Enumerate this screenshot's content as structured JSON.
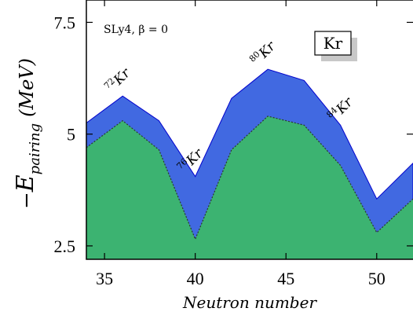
{
  "chart_data": {
    "type": "area",
    "xlabel": "Neutron number",
    "ylabel": "−E_pairing (MeV)",
    "xlim": [
      34,
      52
    ],
    "ylim": [
      2.2,
      8.0
    ],
    "x_ticks": [
      35,
      40,
      45,
      50
    ],
    "y_ticks": [
      2.5,
      5,
      7.5
    ],
    "x_tick_labels": [
      "35",
      "40",
      "45",
      "50"
    ],
    "y_tick_labels": [
      "2.5",
      "5",
      "7.5"
    ],
    "x": [
      34,
      36,
      38,
      40,
      42,
      44,
      46,
      48,
      50,
      52
    ],
    "series": [
      {
        "values": [
          5.25,
          5.85,
          5.3,
          4.05,
          5.8,
          6.45,
          6.2,
          5.2,
          3.55,
          4.35
        ],
        "color": "#4169e1"
      },
      {
        "values": [
          4.7,
          5.3,
          4.65,
          2.65,
          4.65,
          5.4,
          5.2,
          4.3,
          2.8,
          3.55
        ],
        "color": "#3cb371"
      }
    ],
    "annotations": [
      {
        "isotope": "Kr",
        "mass": "72",
        "x": 36
      },
      {
        "isotope": "Kr",
        "mass": "76",
        "x": 40
      },
      {
        "isotope": "Kr",
        "mass": "80",
        "x": 44
      },
      {
        "isotope": "Kr",
        "mass": "84",
        "x": 48
      }
    ],
    "inner_title": "SLy4, β = 0",
    "element_tag": "Kr",
    "grid": false
  },
  "ylabel_parts": {
    "minus": "−",
    "E": "E",
    "sub": "pairing",
    "unit": "(MeV)"
  }
}
